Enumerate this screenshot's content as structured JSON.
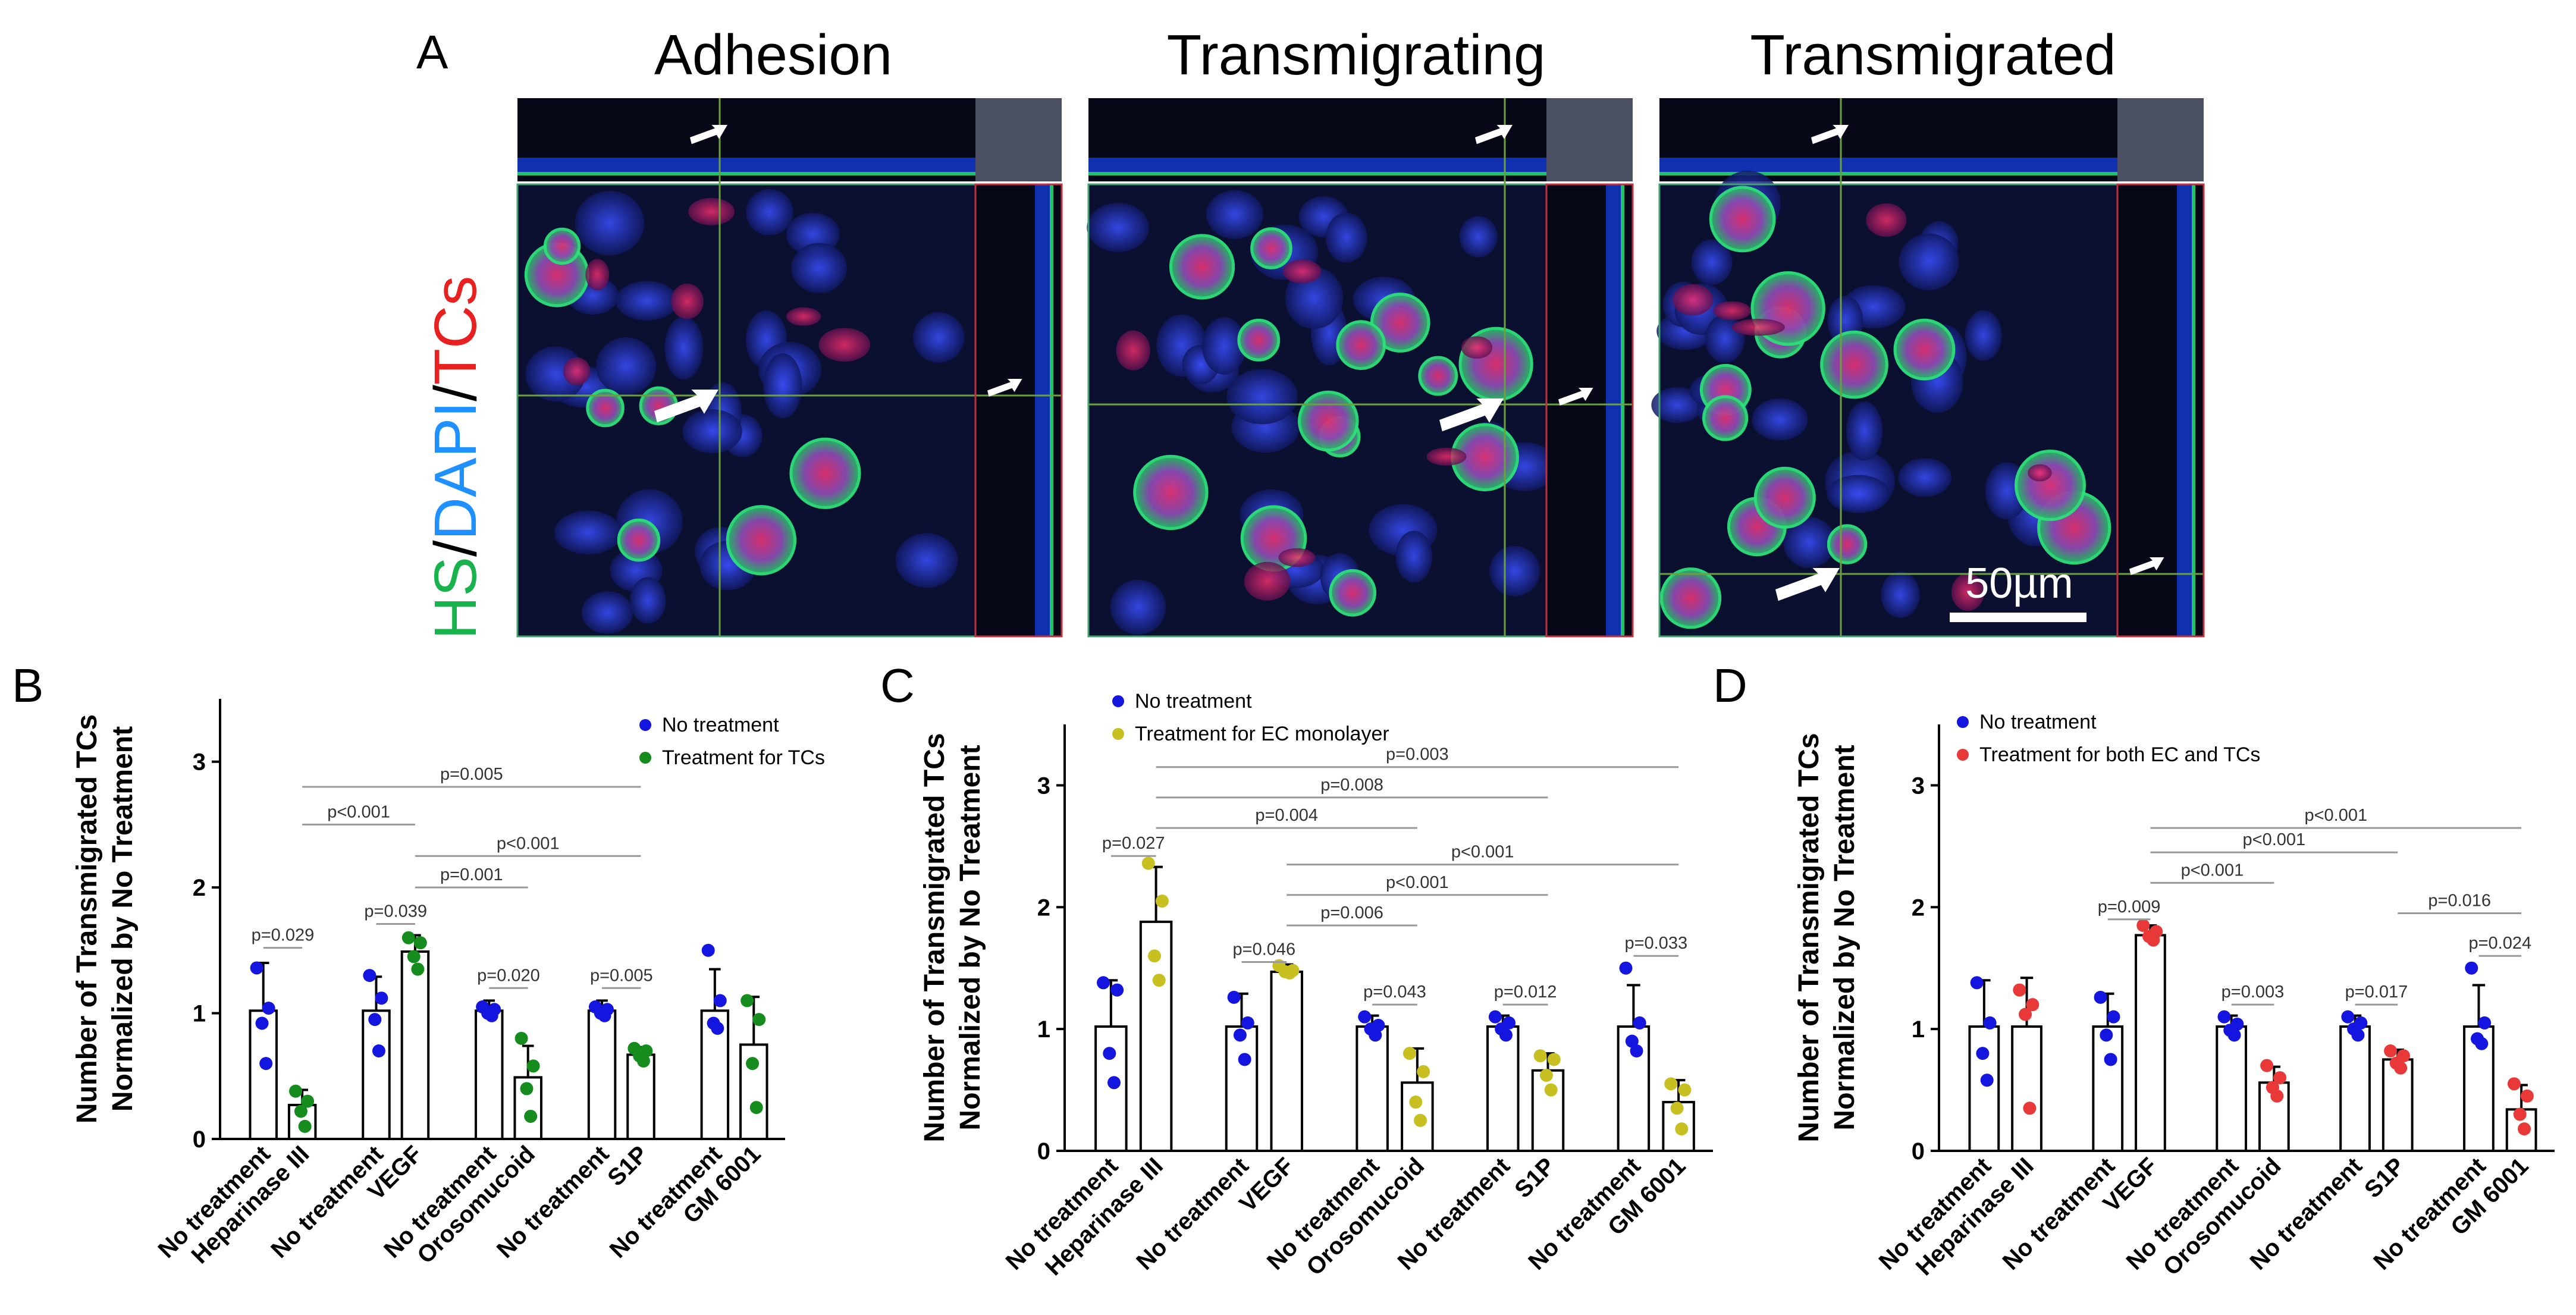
{
  "figure": {
    "panel_a": {
      "letter": "A",
      "titles": [
        "Adhesion",
        "Transmigrating",
        "Transmigrated"
      ],
      "stain": [
        "HS",
        "/",
        "DAPI",
        "/",
        "TCs"
      ],
      "stain_colors": [
        "#19b34d",
        "#000000",
        "#1e90ff",
        "#000000",
        "#e82020"
      ],
      "scale_bar": "50µm"
    }
  },
  "chart_data": [
    {
      "panel": "B",
      "type": "bar",
      "ylabel": "Number of Transmigrated TCs Normalized by No Treatment",
      "ylim": [
        0,
        3.5
      ],
      "yticks": [
        0,
        1,
        2,
        3
      ],
      "legend_position": "top-right",
      "legend": [
        {
          "label": "No treatment",
          "color": "#1515e0"
        },
        {
          "label": "Treatment for TCs",
          "color": "#168c1e"
        }
      ],
      "categories": [
        "No treatment",
        "Heparinase III",
        "No treatment",
        "VEGF",
        "No treatment",
        "Orosomucoid",
        "No treatment",
        "S1P",
        "No treatment",
        "GM 6001"
      ],
      "bars": [
        {
          "mean": 1.02,
          "err": 0.38,
          "points": [
            1.36,
            1.04,
            0.92,
            0.6
          ],
          "series": 0
        },
        {
          "mean": 0.27,
          "err": 0.12,
          "points": [
            0.38,
            0.3,
            0.22,
            0.1
          ],
          "series": 1
        },
        {
          "mean": 1.02,
          "err": 0.27,
          "points": [
            1.3,
            1.12,
            0.95,
            0.7
          ],
          "series": 0
        },
        {
          "mean": 1.49,
          "err": 0.13,
          "points": [
            1.6,
            1.56,
            1.45,
            1.35
          ],
          "series": 1
        },
        {
          "mean": 1.02,
          "err": 0.08,
          "points": [
            1.05,
            1.03,
            1.0,
            0.98
          ],
          "series": 0
        },
        {
          "mean": 0.49,
          "err": 0.25,
          "points": [
            0.8,
            0.58,
            0.4,
            0.18
          ],
          "series": 1
        },
        {
          "mean": 1.02,
          "err": 0.08,
          "points": [
            1.05,
            1.03,
            1.0,
            0.98
          ],
          "series": 0
        },
        {
          "mean": 0.67,
          "err": 0.06,
          "points": [
            0.72,
            0.7,
            0.66,
            0.62
          ],
          "series": 1
        },
        {
          "mean": 1.02,
          "err": 0.33,
          "points": [
            1.5,
            1.1,
            0.92,
            0.88
          ],
          "series": 0
        },
        {
          "mean": 0.75,
          "err": 0.38,
          "points": [
            1.1,
            0.95,
            0.6,
            0.25
          ],
          "series": 1
        }
      ],
      "comparisons": [
        {
          "a": 0,
          "b": 1,
          "label": "p=0.029",
          "y": 1.52
        },
        {
          "a": 2,
          "b": 3,
          "label": "p=0.039",
          "y": 1.71
        },
        {
          "a": 4,
          "b": 5,
          "label": "p=0.020",
          "y": 1.2
        },
        {
          "a": 6,
          "b": 7,
          "label": "p=0.005",
          "y": 1.2
        },
        {
          "a": 3,
          "b": 5,
          "label": "p=0.001",
          "y": 2.0
        },
        {
          "a": 3,
          "b": 7,
          "label": "p<0.001",
          "y": 2.25
        },
        {
          "a": 1,
          "b": 3,
          "label": "p<0.001",
          "y": 2.5
        },
        {
          "a": 1,
          "b": 7,
          "label": "p=0.005",
          "y": 2.8
        }
      ]
    },
    {
      "panel": "C",
      "type": "bar",
      "ylabel": "Number of Transmigrated TCs Normalized by No Treatment",
      "ylim": [
        0,
        3.5
      ],
      "yticks": [
        0,
        1,
        2,
        3
      ],
      "legend_position": "top-left",
      "legend": [
        {
          "label": "No treatment",
          "color": "#1515e0"
        },
        {
          "label": "Treatment for EC monolayer",
          "color": "#c8c020"
        }
      ],
      "categories": [
        "No treatment",
        "Heparinase III",
        "No treatment",
        "VEGF",
        "No treatment",
        "Orosomucoid",
        "No treatment",
        "S1P",
        "No treatment",
        "GM 6001"
      ],
      "bars": [
        {
          "mean": 1.02,
          "err": 0.38,
          "points": [
            1.38,
            1.32,
            0.8,
            0.56
          ],
          "series": 0
        },
        {
          "mean": 1.88,
          "err": 0.45,
          "points": [
            2.36,
            2.05,
            1.6,
            1.4
          ],
          "series": 1
        },
        {
          "mean": 1.02,
          "err": 0.27,
          "points": [
            1.26,
            1.05,
            0.95,
            0.75
          ],
          "series": 0
        },
        {
          "mean": 1.47,
          "err": 0.06,
          "points": [
            1.52,
            1.48,
            1.47,
            1.46
          ],
          "series": 1
        },
        {
          "mean": 1.02,
          "err": 0.09,
          "points": [
            1.1,
            1.03,
            1.0,
            0.95
          ],
          "series": 0
        },
        {
          "mean": 0.56,
          "err": 0.28,
          "points": [
            0.8,
            0.65,
            0.4,
            0.25
          ],
          "series": 1
        },
        {
          "mean": 1.02,
          "err": 0.09,
          "points": [
            1.1,
            1.05,
            1.0,
            0.95
          ],
          "series": 0
        },
        {
          "mean": 0.66,
          "err": 0.14,
          "points": [
            0.78,
            0.75,
            0.62,
            0.5
          ],
          "series": 1
        },
        {
          "mean": 1.02,
          "err": 0.34,
          "points": [
            1.5,
            1.05,
            0.9,
            0.82
          ],
          "series": 0
        },
        {
          "mean": 0.4,
          "err": 0.18,
          "points": [
            0.55,
            0.5,
            0.35,
            0.18
          ],
          "series": 1
        }
      ],
      "comparisons": [
        {
          "a": 0,
          "b": 1,
          "label": "p=0.027",
          "y": 2.42
        },
        {
          "a": 2,
          "b": 3,
          "label": "p=0.046",
          "y": 1.55
        },
        {
          "a": 4,
          "b": 5,
          "label": "p=0.043",
          "y": 1.2
        },
        {
          "a": 6,
          "b": 7,
          "label": "p=0.012",
          "y": 1.2
        },
        {
          "a": 8,
          "b": 9,
          "label": "p=0.033",
          "y": 1.6
        },
        {
          "a": 3,
          "b": 5,
          "label": "p=0.006",
          "y": 1.85
        },
        {
          "a": 3,
          "b": 7,
          "label": "p<0.001",
          "y": 2.1
        },
        {
          "a": 3,
          "b": 9,
          "label": "p<0.001",
          "y": 2.35
        },
        {
          "a": 1,
          "b": 5,
          "label": "p=0.004",
          "y": 2.65
        },
        {
          "a": 1,
          "b": 7,
          "label": "p=0.008",
          "y": 2.9
        },
        {
          "a": 1,
          "b": 9,
          "label": "p=0.003",
          "y": 3.15
        }
      ]
    },
    {
      "panel": "D",
      "type": "bar",
      "ylabel": "Number of Transmigrated TCs Normalized by No Treatment",
      "ylim": [
        0,
        3.5
      ],
      "yticks": [
        0,
        1,
        2,
        3
      ],
      "legend_position": "top-left",
      "legend": [
        {
          "label": "No treatment",
          "color": "#1515e0"
        },
        {
          "label": "Treatment for both EC and TCs",
          "color": "#e83838"
        }
      ],
      "categories": [
        "No treatment",
        "Heparinase III",
        "No treatment",
        "VEGF",
        "No treatment",
        "Orosomucoid",
        "No treatment",
        "S1P",
        "No treatment",
        "GM 6001"
      ],
      "bars": [
        {
          "mean": 1.02,
          "err": 0.38,
          "points": [
            1.38,
            1.05,
            0.8,
            0.58
          ],
          "series": 0
        },
        {
          "mean": 1.02,
          "err": 0.4,
          "points": [
            1.32,
            1.2,
            1.12,
            0.35
          ],
          "series": 1
        },
        {
          "mean": 1.02,
          "err": 0.27,
          "points": [
            1.26,
            1.1,
            0.95,
            0.75
          ],
          "series": 0
        },
        {
          "mean": 1.77,
          "err": 0.08,
          "points": [
            1.85,
            1.8,
            1.76,
            1.73
          ],
          "series": 1
        },
        {
          "mean": 1.02,
          "err": 0.09,
          "points": [
            1.1,
            1.04,
            0.99,
            0.95
          ],
          "series": 0
        },
        {
          "mean": 0.56,
          "err": 0.13,
          "points": [
            0.7,
            0.6,
            0.52,
            0.45
          ],
          "series": 1
        },
        {
          "mean": 1.02,
          "err": 0.09,
          "points": [
            1.1,
            1.05,
            1.0,
            0.95
          ],
          "series": 0
        },
        {
          "mean": 0.75,
          "err": 0.08,
          "points": [
            0.82,
            0.78,
            0.72,
            0.68
          ],
          "series": 1
        },
        {
          "mean": 1.02,
          "err": 0.34,
          "points": [
            1.5,
            1.05,
            0.92,
            0.88
          ],
          "series": 0
        },
        {
          "mean": 0.34,
          "err": 0.2,
          "points": [
            0.55,
            0.45,
            0.3,
            0.18
          ],
          "series": 1
        }
      ],
      "comparisons": [
        {
          "a": 2,
          "b": 3,
          "label": "p=0.009",
          "y": 1.9
        },
        {
          "a": 4,
          "b": 5,
          "label": "p=0.003",
          "y": 1.2
        },
        {
          "a": 6,
          "b": 7,
          "label": "p=0.017",
          "y": 1.2
        },
        {
          "a": 8,
          "b": 9,
          "label": "p=0.024",
          "y": 1.6
        },
        {
          "a": 7,
          "b": 9,
          "label": "p=0.016",
          "y": 1.95
        },
        {
          "a": 3,
          "b": 5,
          "label": "p<0.001",
          "y": 2.2
        },
        {
          "a": 3,
          "b": 7,
          "label": "p<0.001",
          "y": 2.45
        },
        {
          "a": 3,
          "b": 9,
          "label": "p<0.001",
          "y": 2.65
        }
      ]
    }
  ]
}
